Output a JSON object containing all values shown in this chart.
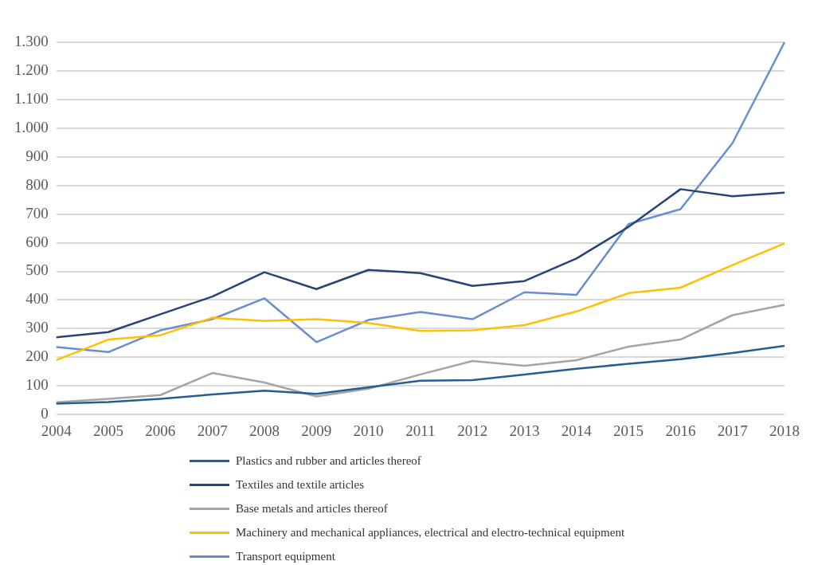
{
  "chart_data": {
    "type": "line",
    "categories": [
      "2004",
      "2005",
      "2006",
      "2007",
      "2008",
      "2009",
      "2010",
      "2011",
      "2012",
      "2013",
      "2014",
      "2015",
      "2016",
      "2017",
      "2018"
    ],
    "series": [
      {
        "name": "Plastics and rubber and articles thereof",
        "color": "#255e91",
        "values": [
          38,
          44,
          55,
          70,
          83,
          72,
          95,
          118,
          120,
          140,
          160,
          177,
          193,
          215,
          240
        ]
      },
      {
        "name": "Textiles and textile articles",
        "color": "#264478",
        "values": [
          270,
          288,
          350,
          412,
          497,
          438,
          505,
          494,
          449,
          466,
          545,
          655,
          787,
          762,
          775
        ]
      },
      {
        "name": "Base metals and articles thereof",
        "color": "#a5a5a5",
        "values": [
          43,
          55,
          68,
          145,
          112,
          63,
          90,
          140,
          187,
          170,
          190,
          237,
          262,
          347,
          383
        ]
      },
      {
        "name": "Machinery and mechanical appliances, electrical and electro-technical equipment",
        "color": "#ffc000",
        "values": [
          190,
          262,
          277,
          338,
          327,
          333,
          320,
          292,
          294,
          312,
          360,
          424,
          443,
          522,
          598
        ]
      },
      {
        "name": "Transport equipment",
        "color": "#698ed0",
        "values": [
          236,
          218,
          294,
          333,
          406,
          253,
          330,
          358,
          333,
          427,
          418,
          665,
          717,
          948,
          1300
        ]
      }
    ],
    "ylim": [
      0,
      1300
    ],
    "yticks": [
      0,
      100,
      200,
      300,
      400,
      500,
      600,
      700,
      800,
      900,
      {
        "value": 1000,
        "label": "1.000"
      },
      {
        "value": 1100,
        "label": "1.100"
      },
      {
        "value": 1200,
        "label": "1.200"
      },
      {
        "value": 1300,
        "label": "1.300"
      }
    ],
    "grid": "y",
    "legend": "bottom",
    "marker": "none",
    "line_style": "solid"
  }
}
